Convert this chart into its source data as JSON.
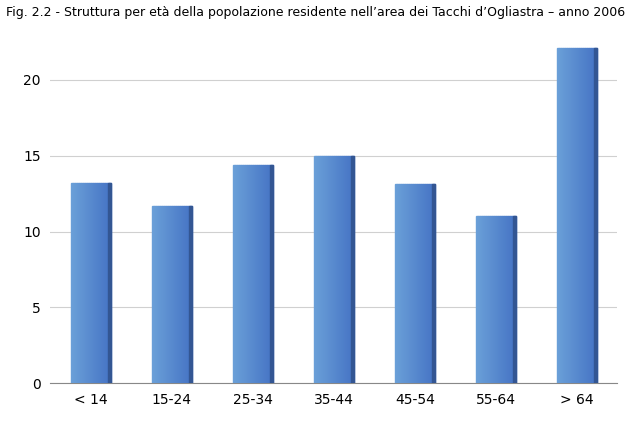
{
  "title": "Fig. 2.2 - Struttura per età della popolazione residente nell’area dei Tacchi d’Ogliastra – anno 2006",
  "categories": [
    "< 14",
    "15-24",
    "25-34",
    "35-44",
    "45-54",
    "55-64",
    "> 64"
  ],
  "values": [
    13.2,
    11.7,
    14.4,
    15.0,
    13.1,
    11.0,
    22.1
  ],
  "bar_color": "#4472C4",
  "bar_color_light": "#6a9fd8",
  "ylim": [
    0,
    23
  ],
  "yticks": [
    0,
    5,
    10,
    15,
    20
  ],
  "title_fontsize": 9,
  "tick_fontsize": 10,
  "background_color": "#ffffff",
  "plot_background": "#ffffff",
  "grid_color": "#d0d0d0",
  "bar_width": 0.5
}
